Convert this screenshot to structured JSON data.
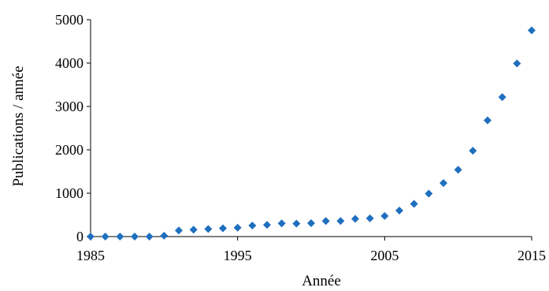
{
  "chart_data": {
    "type": "scatter",
    "xlabel": "Année",
    "ylabel": "Publications / année",
    "xlim": [
      1985,
      2015
    ],
    "ylim": [
      0,
      5000
    ],
    "xticks": [
      1985,
      1995,
      2005,
      2015
    ],
    "yticks": [
      0,
      1000,
      2000,
      3000,
      4000,
      5000
    ],
    "grid": false,
    "marker": "diamond",
    "marker_color": "#1F6FBF",
    "x": [
      1985,
      1986,
      1987,
      1988,
      1989,
      1990,
      1991,
      1992,
      1993,
      1994,
      1995,
      1996,
      1997,
      1998,
      1999,
      2000,
      2001,
      2002,
      2003,
      2004,
      2005,
      2006,
      2007,
      2008,
      2009,
      2010,
      2011,
      2012,
      2013,
      2014,
      2015
    ],
    "y": [
      0,
      0,
      0,
      0,
      0,
      20,
      140,
      160,
      175,
      190,
      205,
      255,
      270,
      305,
      300,
      310,
      360,
      360,
      410,
      420,
      475,
      600,
      755,
      990,
      1235,
      1540,
      1980,
      2680,
      3215,
      3990,
      4755
    ]
  }
}
